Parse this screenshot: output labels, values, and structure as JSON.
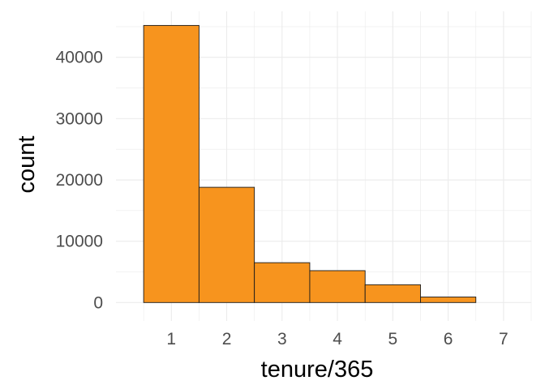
{
  "chart_data": {
    "type": "bar",
    "title": "",
    "xlabel": "tenure/365",
    "ylabel": "count",
    "categories": [
      "1",
      "2",
      "3",
      "4",
      "5",
      "6"
    ],
    "x": [
      1,
      2,
      3,
      4,
      5,
      6
    ],
    "values": [
      45200,
      18800,
      6500,
      5200,
      2900,
      900
    ],
    "bin_width": 1,
    "xlim": [
      0,
      7.5
    ],
    "ylim": [
      -3000,
      47500
    ],
    "x_ticks": [
      1,
      2,
      3,
      4,
      5,
      6,
      7
    ],
    "y_ticks": [
      0,
      10000,
      20000,
      30000,
      40000
    ],
    "grid": true,
    "legend": "none",
    "colors": {
      "fill": "#F7941E",
      "outline": "#1a1a1a",
      "grid": "#ebebeb",
      "tick_text": "#4d4d4d"
    }
  }
}
